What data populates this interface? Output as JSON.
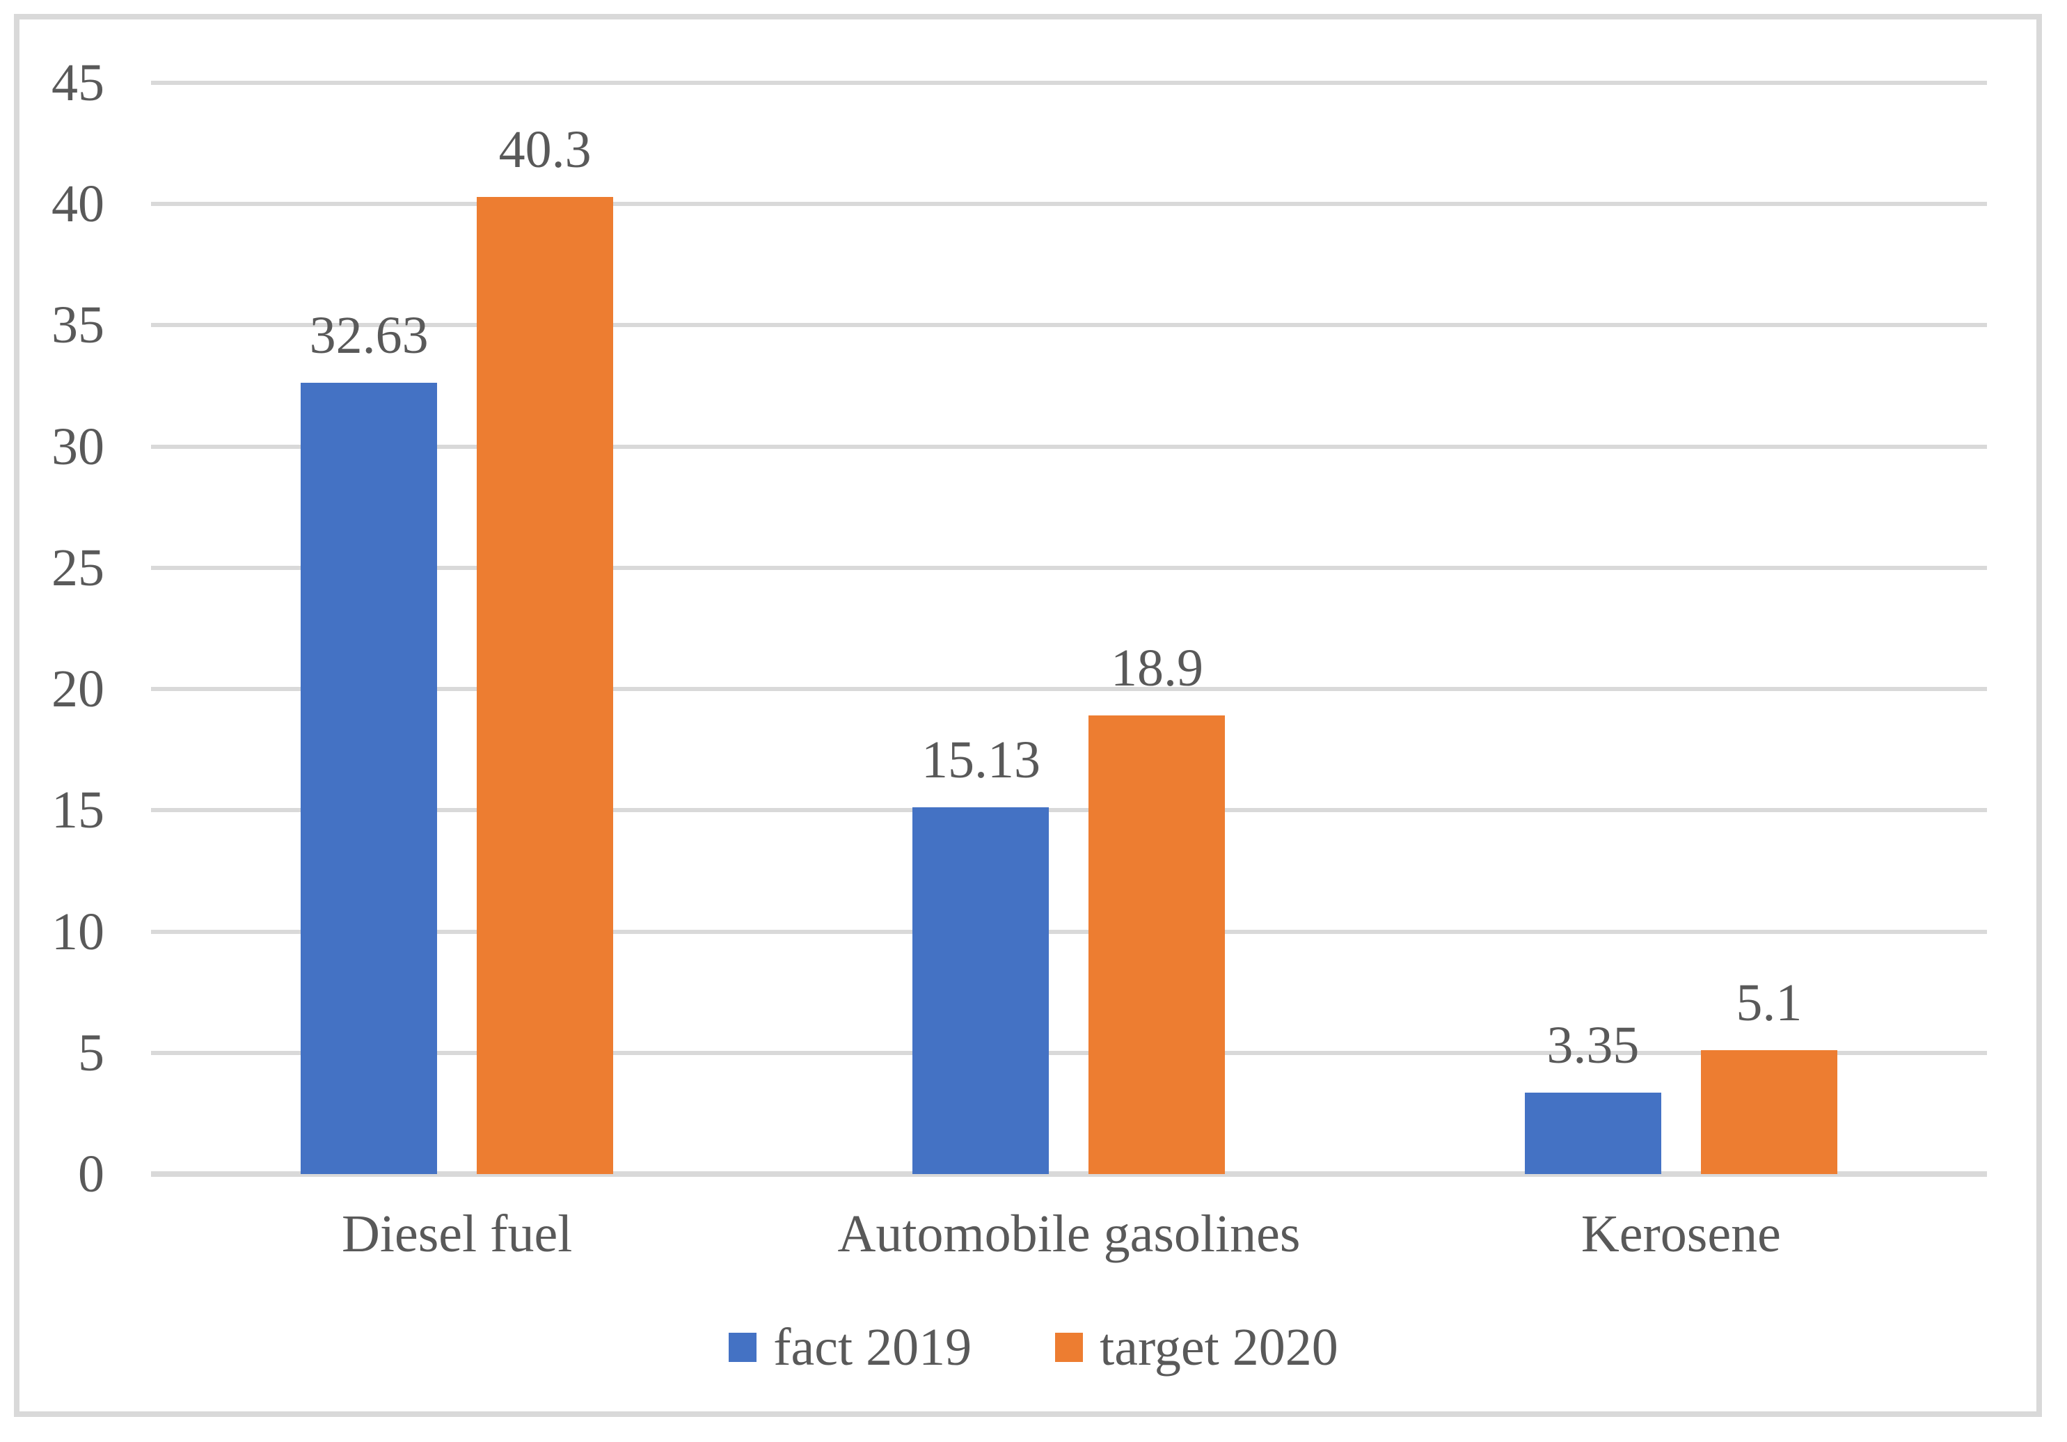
{
  "chart_data": {
    "type": "bar",
    "categories": [
      "Diesel fuel",
      "Automobile gasolines",
      "Kerosene"
    ],
    "series": [
      {
        "name": "fact 2019",
        "color": "#4472C4",
        "values": [
          32.63,
          15.13,
          3.35
        ],
        "labels": [
          "32.63",
          "15.13",
          "3.35"
        ]
      },
      {
        "name": "target 2020",
        "color": "#ED7D31",
        "values": [
          40.3,
          18.9,
          5.1
        ],
        "labels": [
          "40.3",
          "18.9",
          "5.1"
        ]
      }
    ],
    "title": "",
    "xlabel": "",
    "ylabel": "",
    "ylim": [
      0,
      45
    ],
    "yticks": [
      0,
      5,
      10,
      15,
      20,
      25,
      30,
      35,
      40,
      45
    ],
    "grid": "horizontal",
    "legend_position": "bottom",
    "data_labels": true
  },
  "styles": {
    "grid_color": "#D9D9D9",
    "border_color": "#D9D9D9",
    "text_color": "#595959",
    "background": "#FFFFFF"
  }
}
